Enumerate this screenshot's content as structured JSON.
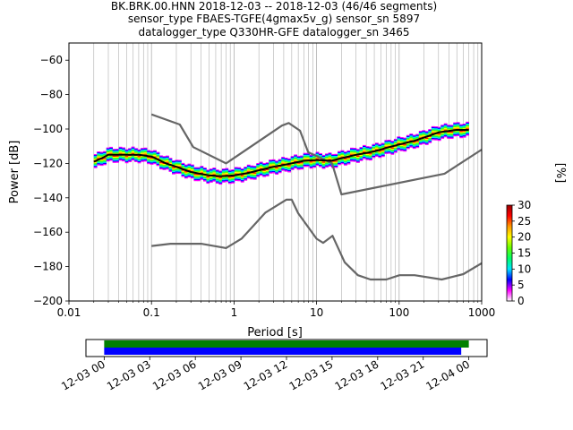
{
  "title_lines": [
    "BK.BRK.00.HNN   2018-12-03 -- 2018-12-03  (46/46 segments)",
    "sensor_type FBAES-TGFE(4gmax5v_g) sensor_sn 5897",
    "datalogger_type Q330HR-GFE datalogger_sn 3465"
  ],
  "chart_data": [
    {
      "type": "heatmap",
      "subtype": "probabilistic-power-spectral-density",
      "xlabel": "Period [s]",
      "ylabel": "Power [dB]",
      "xscale": "log",
      "xlim": [
        0.01,
        1000
      ],
      "ylim": [
        -200,
        -50
      ],
      "xticks": [
        0.01,
        0.1,
        1,
        10,
        100,
        1000
      ],
      "xtick_labels": [
        "0.01",
        "0.1",
        "1",
        "10",
        "100",
        "1000"
      ],
      "yticks": [
        -200,
        -180,
        -160,
        -140,
        -120,
        -100,
        -80,
        -60
      ],
      "ytick_labels": [
        "−200",
        "−180",
        "−160",
        "−140",
        "−120",
        "−100",
        "−80",
        "−60"
      ],
      "grid": "vertical-minor-and-major",
      "colorbar": {
        "label": "[%]",
        "range": [
          0,
          30
        ],
        "ticks": [
          0,
          5,
          10,
          15,
          20,
          25,
          30
        ],
        "colormap": [
          "#ffffff",
          "#ff00ff",
          "#0000ff",
          "#00e5ff",
          "#00ff66",
          "#66ff00",
          "#ffff00",
          "#ff9900",
          "#ff0000",
          "#990000"
        ]
      },
      "density_period_range": [
        0.02,
        700
      ],
      "density_half_width_db": 4,
      "series": [
        {
          "role": "high-noise-model",
          "color": "#666666",
          "x": [
            0.1,
            0.22,
            0.32,
            0.8,
            3.8,
            4.6,
            6.3,
            7.9,
            15.4,
            20,
            354.8,
            1000
          ],
          "y": [
            -91.5,
            -97.4,
            -110.5,
            -120,
            -98,
            -96.5,
            -101,
            -113.5,
            -120,
            -138,
            -126,
            -112
          ]
        },
        {
          "role": "low-noise-model",
          "color": "#666666",
          "x": [
            0.1,
            0.17,
            0.4,
            0.8,
            1.24,
            2.4,
            4.3,
            5,
            6,
            10,
            12,
            15.6,
            21.9,
            31.6,
            45,
            70,
            101,
            154,
            328,
            600,
            1000
          ],
          "y": [
            -168,
            -166.7,
            -166.7,
            -169.2,
            -163.7,
            -148.6,
            -141.1,
            -141.1,
            -149,
            -163.8,
            -166.2,
            -162.1,
            -177.5,
            -185,
            -187.5,
            -187.5,
            -185,
            -185,
            -187.5,
            -184.4,
            -178
          ]
        },
        {
          "role": "mode",
          "color": "#000000",
          "x": [
            0.02,
            0.025,
            0.03,
            0.04,
            0.05,
            0.07,
            0.1,
            0.15,
            0.2,
            0.3,
            0.5,
            0.7,
            1,
            1.5,
            2,
            3,
            5,
            7,
            10,
            15,
            20,
            30,
            50,
            70,
            100,
            150,
            200,
            300,
            500,
            700
          ],
          "y": [
            -119,
            -117,
            -115,
            -115,
            -115,
            -115,
            -116,
            -120,
            -122,
            -125,
            -127,
            -127.5,
            -127,
            -125.5,
            -124,
            -122,
            -120,
            -118.5,
            -118,
            -118.5,
            -117,
            -115,
            -113,
            -111,
            -109,
            -107,
            -105,
            -102,
            -100.5,
            -100.5
          ]
        }
      ]
    },
    {
      "type": "timeline",
      "subtype": "data-availability",
      "xticks": [
        "12-03 00",
        "12-03 03",
        "12-03 06",
        "12-03 09",
        "12-03 12",
        "12-03 15",
        "12-03 18",
        "12-03 21",
        "12-04 00"
      ],
      "xtick_hours": [
        0,
        3,
        6,
        9,
        12,
        15,
        18,
        21,
        24
      ],
      "xlim_hours": [
        -1.2,
        25.2
      ],
      "bars": [
        {
          "role": "data-present",
          "color": "#008000",
          "start_hour": 0,
          "end_hour": 24
        },
        {
          "role": "psd-segments",
          "color": "#0000ff",
          "start_hour": 0,
          "end_hour": 23.5
        }
      ]
    }
  ]
}
